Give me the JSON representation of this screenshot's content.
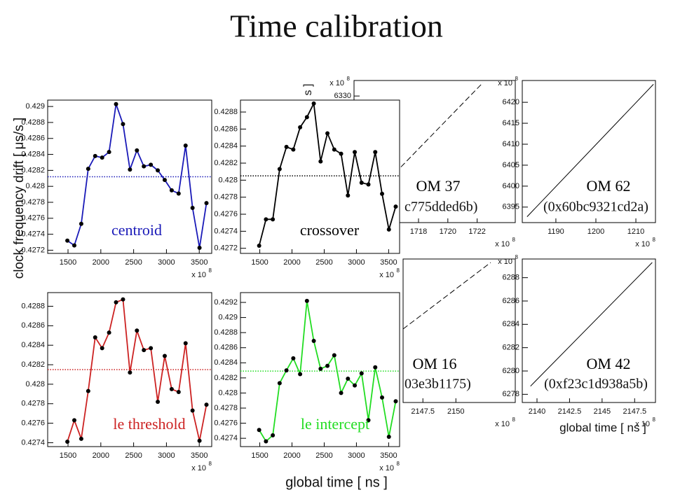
{
  "title": "Time calibration",
  "y_label": "clock frequency drift [ μs/s ]",
  "x_label": "global time [ ns ]",
  "back_x_label": "global time [ ns ]",
  "back_y_label_fragment": "s ]",
  "chart_data": [
    {
      "type": "line",
      "label": "centroid",
      "color": "#1a1ab8",
      "markers": true,
      "x": [
        1490,
        1596,
        1702,
        1808,
        1914,
        2020,
        2126,
        2232,
        2338,
        2444,
        2550,
        2656,
        2762,
        2868,
        2974,
        3080,
        3186,
        3292,
        3398,
        3504,
        3610
      ],
      "values": [
        0.42732,
        0.42726,
        0.42753,
        0.42822,
        0.42838,
        0.42836,
        0.42843,
        0.42903,
        0.42878,
        0.42821,
        0.42845,
        0.42825,
        0.42827,
        0.4282,
        0.42808,
        0.42795,
        0.42791,
        0.42851,
        0.42773,
        0.42723,
        0.42779
      ],
      "reference": 0.42812,
      "xlim": [
        1190,
        3690
      ],
      "xticks": [
        1500,
        2000,
        2500,
        3000,
        3500
      ],
      "ylim": [
        0.42716,
        0.42908
      ],
      "yticks": [
        0.4272,
        0.4274,
        0.4276,
        0.4278,
        0.428,
        0.4282,
        0.4284,
        0.4286,
        0.4288,
        0.429
      ],
      "x_multiplier": {
        "text": "x 10",
        "exponent": "8"
      }
    },
    {
      "type": "line",
      "label": "crossover",
      "color": "#000000",
      "markers": true,
      "x": [
        1490,
        1596,
        1702,
        1808,
        1914,
        2020,
        2126,
        2232,
        2338,
        2444,
        2550,
        2656,
        2762,
        2868,
        2974,
        3080,
        3186,
        3292,
        3398,
        3504,
        3610
      ],
      "values": [
        0.42723,
        0.42754,
        0.42754,
        0.42813,
        0.42839,
        0.42836,
        0.42862,
        0.42874,
        0.4289,
        0.42822,
        0.42855,
        0.42836,
        0.42831,
        0.42782,
        0.42833,
        0.42797,
        0.42795,
        0.42833,
        0.42784,
        0.42742,
        0.42769
      ],
      "reference": 0.42805,
      "xlim": [
        1200,
        3670
      ],
      "xticks": [
        1500,
        2000,
        2500,
        3000,
        3500
      ],
      "ylim": [
        0.42714,
        0.42894
      ],
      "yticks": [
        0.4272,
        0.4274,
        0.4276,
        0.4278,
        0.428,
        0.4282,
        0.4284,
        0.4286,
        0.4288
      ],
      "x_multiplier": {
        "text": "x 10",
        "exponent": "8"
      }
    },
    {
      "type": "line",
      "label": "le threshold",
      "color": "#cc2222",
      "markers": true,
      "x": [
        1490,
        1596,
        1702,
        1808,
        1914,
        2020,
        2126,
        2232,
        2338,
        2444,
        2550,
        2656,
        2762,
        2868,
        2974,
        3080,
        3186,
        3292,
        3398,
        3504,
        3610
      ],
      "values": [
        0.42741,
        0.42763,
        0.42744,
        0.42793,
        0.42848,
        0.42837,
        0.42853,
        0.42884,
        0.42887,
        0.42812,
        0.42855,
        0.42835,
        0.42837,
        0.42782,
        0.42829,
        0.42795,
        0.42792,
        0.42842,
        0.42773,
        0.42742,
        0.42779
      ],
      "reference": 0.42815,
      "xlim": [
        1190,
        3690
      ],
      "xticks": [
        1500,
        2000,
        2500,
        3000,
        3500
      ],
      "ylim": [
        0.42736,
        0.42894
      ],
      "yticks": [
        0.4274,
        0.4276,
        0.4278,
        0.428,
        0.4282,
        0.4284,
        0.4286,
        0.4288
      ],
      "x_multiplier": {
        "text": "x 10",
        "exponent": "8"
      }
    },
    {
      "type": "line",
      "label": "le intercept",
      "color": "#22dd22",
      "markers": true,
      "x": [
        1490,
        1596,
        1702,
        1808,
        1914,
        2020,
        2126,
        2232,
        2338,
        2444,
        2550,
        2656,
        2762,
        2868,
        2974,
        3080,
        3186,
        3292,
        3398,
        3504,
        3610
      ],
      "values": [
        0.42751,
        0.42736,
        0.42744,
        0.42813,
        0.4283,
        0.42846,
        0.42825,
        0.42922,
        0.42869,
        0.42832,
        0.42836,
        0.4285,
        0.428,
        0.42819,
        0.4281,
        0.42826,
        0.42764,
        0.42834,
        0.42794,
        0.42742,
        0.42789
      ],
      "reference": 0.42829,
      "xlim": [
        1200,
        3670
      ],
      "xticks": [
        1500,
        2000,
        2500,
        3000,
        3500
      ],
      "ylim": [
        0.42729,
        0.42933
      ],
      "yticks": [
        0.4274,
        0.4276,
        0.4278,
        0.428,
        0.4282,
        0.4284,
        0.4286,
        0.4288,
        0.429,
        0.4292
      ],
      "x_multiplier": {
        "text": "x 10",
        "exponent": "8"
      }
    },
    {
      "type": "line",
      "label": "OM 37",
      "sublabel": "c775dded6b)",
      "color": "#000000",
      "line_style": "dashed",
      "x": [
        1714,
        1722.4
      ],
      "values": [
        6303,
        6333.2
      ],
      "xlim": [
        1713.6,
        1724.6
      ],
      "xticks": [
        1718,
        1720,
        1722
      ],
      "ylim": [
        6299.8,
        6333.7
      ],
      "yticks": [
        6330
      ],
      "x_multiplier": {
        "text": "x 10",
        "exponent": "8"
      },
      "y_multiplier": {
        "text": "x 10",
        "exponent": "8"
      }
    },
    {
      "type": "line",
      "label": "OM 62",
      "sublabel": "(0x60bc9321cd2a)",
      "color": "#000000",
      "line_style": "solid",
      "x": [
        1182.8,
        1214.4
      ],
      "values": [
        6392.7,
        6424.3
      ],
      "xlim": [
        1181.6,
        1214.9
      ],
      "xticks": [
        1190,
        1200,
        1210
      ],
      "ylim": [
        6391.3,
        6425.2
      ],
      "yticks": [
        6395,
        6400,
        6405,
        6410,
        6415,
        6420
      ],
      "x_multiplier": {
        "text": "x 10",
        "exponent": "8"
      },
      "y_multiplier": {
        "text": "x 10",
        "exponent": "8"
      }
    },
    {
      "type": "line",
      "label": "OM 16",
      "sublabel": "03e3b1175)",
      "color": "#000000",
      "line_style": "dashed",
      "xlim": [
        2146.0,
        2154.5
      ],
      "xticks": [
        2147.5,
        2150
      ],
      "x_multiplier": {
        "text": "x 10",
        "exponent": "8"
      }
    },
    {
      "type": "line",
      "label": "OM 42",
      "sublabel": "(0xf23c1d938a5b)",
      "color": "#000000",
      "line_style": "solid",
      "x": [
        2139.5,
        2148.85
      ],
      "values": [
        6278.7,
        6289.3
      ],
      "xlim": [
        2138.87,
        2149.1
      ],
      "xticks": [
        2140,
        2142.5,
        2145,
        2147.5
      ],
      "ylim": [
        6277.3,
        6289.6
      ],
      "yticks": [
        6278,
        6280,
        6282,
        6284,
        6286,
        6288
      ],
      "x_multiplier": {
        "text": "x 10",
        "exponent": "8"
      },
      "y_multiplier": {
        "text": "x 10",
        "exponent": "8"
      }
    }
  ]
}
